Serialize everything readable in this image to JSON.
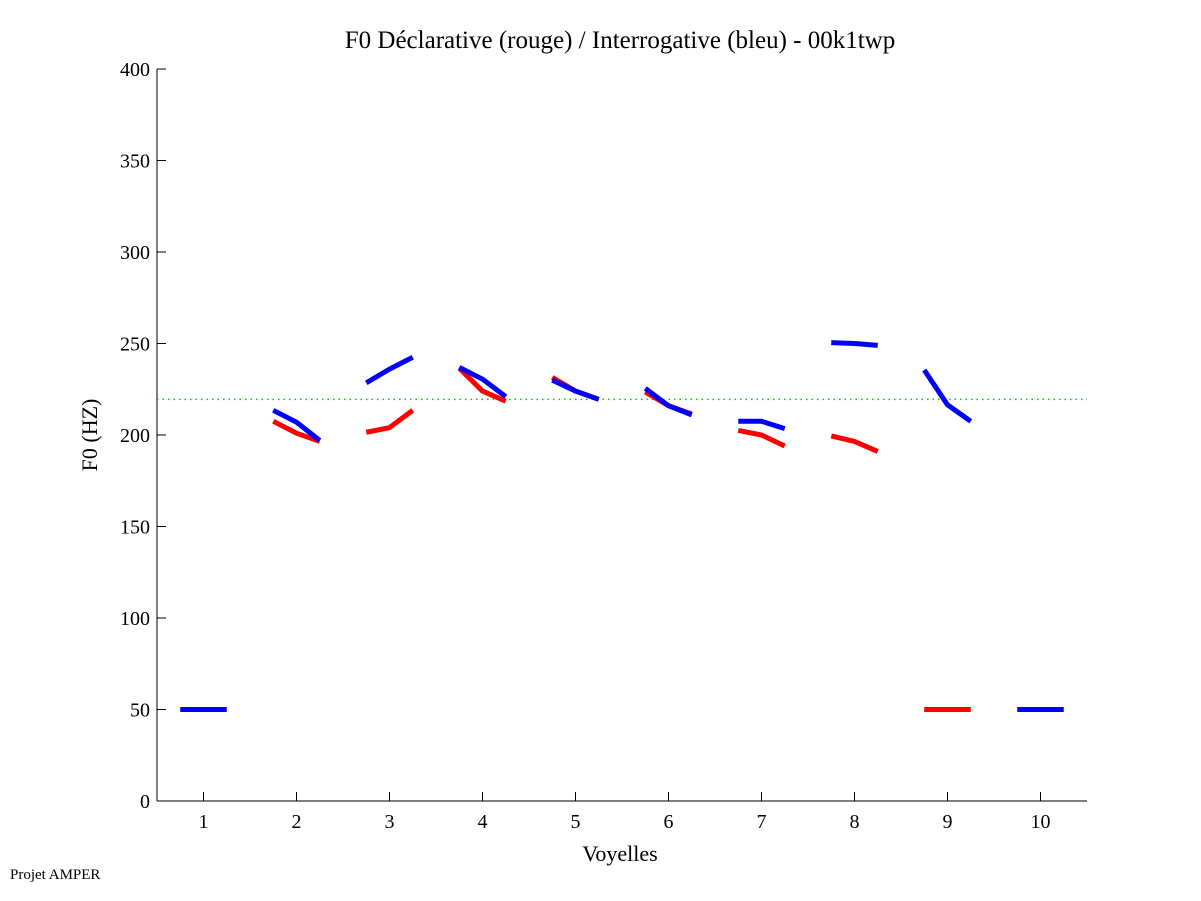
{
  "footer": "Projet AMPER",
  "chart_data": {
    "type": "line",
    "title": "F0 Déclarative (rouge) / Interrogative (bleu) - 00k1twp",
    "xlabel": "Voyelles",
    "ylabel": "F0 (HZ)",
    "xlim": [
      0.5,
      10.5
    ],
    "ylim": [
      0,
      400
    ],
    "xticks": [
      1,
      2,
      3,
      4,
      5,
      6,
      7,
      8,
      9,
      10
    ],
    "yticks": [
      0,
      50,
      100,
      150,
      200,
      250,
      300,
      350,
      400
    ],
    "grid": false,
    "reference_line": {
      "value": 219.5,
      "color": "#00cc00",
      "style": "dotted"
    },
    "series": [
      {
        "name": "Déclarative",
        "color": "#ff0000",
        "segments": [
          {
            "vowel": 2,
            "values": [
              207.5,
              201,
              196.5
            ]
          },
          {
            "vowel": 3,
            "values": [
              201.5,
              204,
              213.5
            ]
          },
          {
            "vowel": 4,
            "values": [
              236.5,
              224,
              218.5
            ]
          },
          {
            "vowel": 5,
            "values": [
              231.5,
              224,
              219.5
            ]
          },
          {
            "vowel": 6,
            "values": [
              223.5,
              216,
              211.5
            ]
          },
          {
            "vowel": 7,
            "values": [
              202.5,
              200,
              194
            ]
          },
          {
            "vowel": 8,
            "values": [
              199.5,
              196.5,
              191
            ]
          },
          {
            "vowel": 9,
            "values": [
              50,
              50,
              50
            ]
          }
        ]
      },
      {
        "name": "Interrogative",
        "color": "#0000ff",
        "segments": [
          {
            "vowel": 1,
            "values": [
              50,
              50,
              50
            ]
          },
          {
            "vowel": 2,
            "values": [
              213.5,
              207,
              197
            ]
          },
          {
            "vowel": 3,
            "values": [
              228.5,
              236,
              242.5
            ]
          },
          {
            "vowel": 4,
            "values": [
              237,
              230.5,
              221
            ]
          },
          {
            "vowel": 5,
            "values": [
              230,
              224,
              219.5
            ]
          },
          {
            "vowel": 6,
            "values": [
              225.5,
              216,
              211
            ]
          },
          {
            "vowel": 7,
            "values": [
              207.5,
              207.5,
              203.5
            ]
          },
          {
            "vowel": 8,
            "values": [
              250.5,
              250,
              249
            ]
          },
          {
            "vowel": 9,
            "values": [
              235.5,
              216.5,
              207.5
            ]
          },
          {
            "vowel": 10,
            "values": [
              50,
              50,
              50
            ]
          }
        ]
      }
    ]
  }
}
